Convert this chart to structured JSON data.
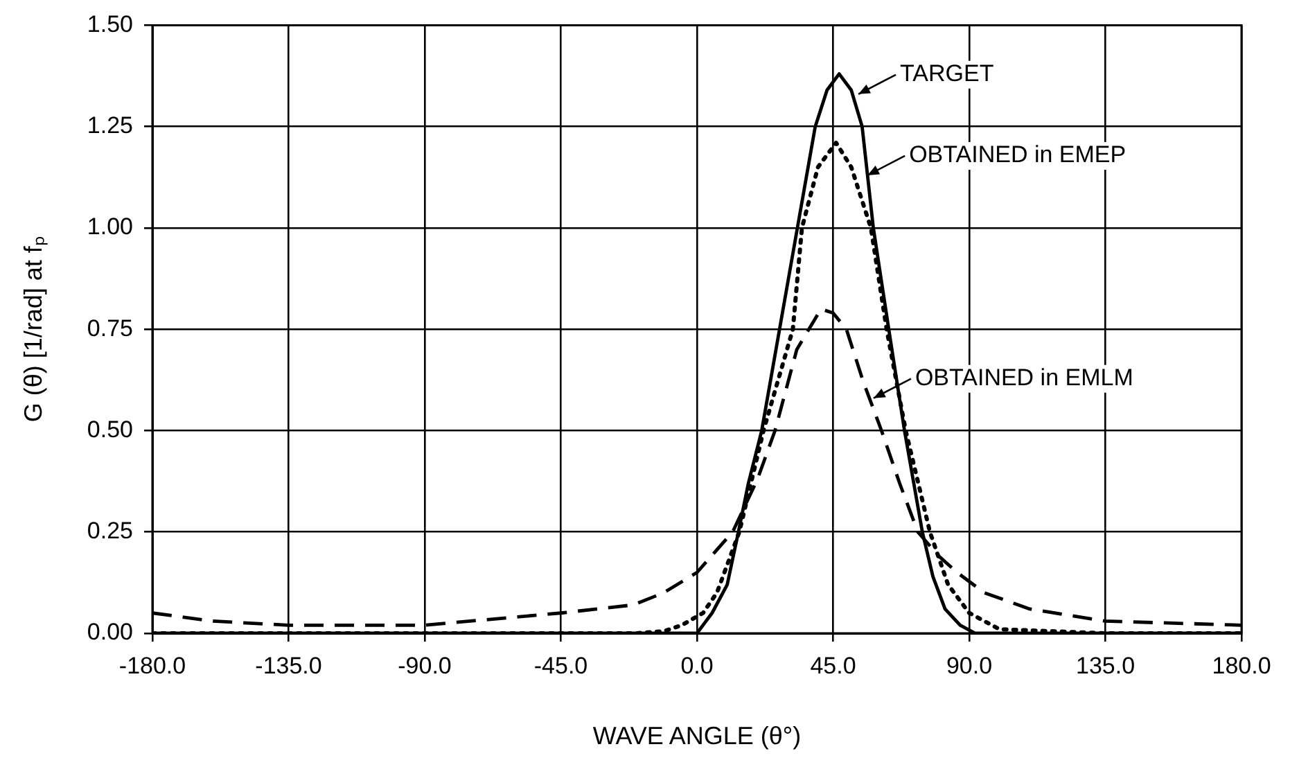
{
  "chart_data": {
    "type": "line",
    "xlabel": "WAVE ANGLE (θ°)",
    "ylabel": "G (θ) [1/rad] at fₚ",
    "xlim": [
      -180,
      180
    ],
    "xticks": [
      {
        "value": -180,
        "label": "-180.0"
      },
      {
        "value": -135,
        "label": "-135.0"
      },
      {
        "value": -90,
        "label": "-90.0"
      },
      {
        "value": -45,
        "label": "-45.0"
      },
      {
        "value": 0,
        "label": "0.0"
      },
      {
        "value": 45,
        "label": "45.0"
      },
      {
        "value": 90,
        "label": "90.0"
      },
      {
        "value": 135,
        "label": "135.0"
      },
      {
        "value": 180,
        "label": "180.0"
      }
    ],
    "ylim": [
      0,
      1.5
    ],
    "yticks": [
      {
        "value": 0,
        "label": "0.00"
      },
      {
        "value": 0.25,
        "label": "0.25"
      },
      {
        "value": 0.5,
        "label": "0.50"
      },
      {
        "value": 0.75,
        "label": "0.75"
      },
      {
        "value": 1,
        "label": "1.00"
      },
      {
        "value": 1.25,
        "label": "1.25"
      },
      {
        "value": 1.5,
        "label": "1.50"
      }
    ],
    "grid": true,
    "legend": false,
    "marker": "none",
    "series": [
      {
        "color": "#000000",
        "line_style": "solid",
        "x": [
          -180,
          -90,
          0,
          5,
          10,
          13.7,
          17,
          21.4,
          27.3,
          33.2,
          39.1,
          43,
          47,
          51,
          54.6,
          58.3,
          63.4,
          68.6,
          74.5,
          78,
          82,
          87,
          92,
          135,
          180
        ],
        "values": [
          0,
          0,
          0,
          0.05,
          0.12,
          0.25,
          0.37,
          0.5,
          0.75,
          1.0,
          1.25,
          1.34,
          1.38,
          1.34,
          1.25,
          1.0,
          0.75,
          0.5,
          0.25,
          0.14,
          0.06,
          0.02,
          0,
          0,
          0
        ]
      },
      {
        "color": "#000000",
        "line_style": "dotted",
        "x": [
          -180,
          -90,
          -20,
          -11,
          -5,
          2,
          6.6,
          14,
          22,
          31.7,
          34.7,
          40,
          46,
          51,
          57.5,
          62.7,
          69,
          77,
          83,
          90,
          100,
          135,
          180
        ],
        "values": [
          0,
          0,
          0,
          0.005,
          0.02,
          0.05,
          0.1,
          0.25,
          0.5,
          0.75,
          1.0,
          1.15,
          1.21,
          1.15,
          1.0,
          0.75,
          0.5,
          0.25,
          0.12,
          0.05,
          0.01,
          0,
          0
        ]
      },
      {
        "color": "#000000",
        "line_style": "dashed",
        "x": [
          -180,
          -160,
          -135,
          -90,
          -45,
          -21,
          -11,
          0,
          11.8,
          20,
          25.8,
          33,
          41,
          45,
          49.4,
          55,
          61,
          67,
          73,
          80,
          86,
          95,
          110,
          135,
          180
        ],
        "values": [
          0.05,
          0.03,
          0.02,
          0.02,
          0.05,
          0.07,
          0.1,
          0.15,
          0.25,
          0.38,
          0.5,
          0.7,
          0.8,
          0.79,
          0.75,
          0.62,
          0.5,
          0.37,
          0.25,
          0.19,
          0.15,
          0.1,
          0.06,
          0.03,
          0.02
        ]
      }
    ],
    "annotations": [
      {
        "text": "TARGET",
        "x": 52,
        "y": 1.33
      },
      {
        "text": "OBTAINED in EMEP",
        "x": 55,
        "y": 1.13
      },
      {
        "text": "OBTAINED in EMLM",
        "x": 57,
        "y": 0.58
      }
    ]
  }
}
